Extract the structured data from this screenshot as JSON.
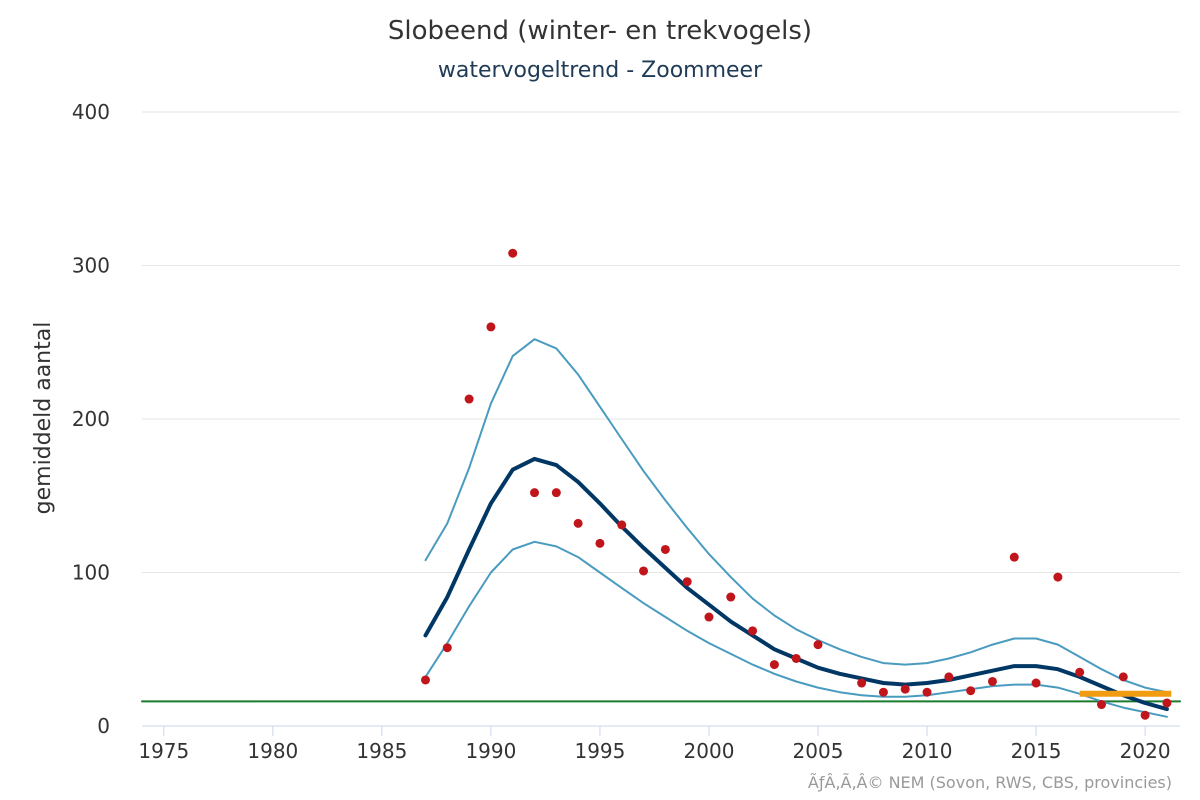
{
  "chart_data": {
    "type": "line",
    "title": "Slobeend (winter- en trekvogels)",
    "subtitle": "watervogeltrend - Zoommeer",
    "xlabel": "",
    "ylabel": "gemiddeld aantal",
    "xlim": [
      1974,
      2021.6
    ],
    "ylim": [
      0,
      400
    ],
    "x_ticks": [
      1975,
      1980,
      1985,
      1990,
      1995,
      2000,
      2005,
      2010,
      2015,
      2020
    ],
    "y_ticks": [
      0,
      100,
      200,
      300,
      400
    ],
    "grid": true,
    "legend": "none",
    "credits": "ÃƒÂ‚Ã‚Â© NEM (Sovon, RWS, CBS, provincies)",
    "series": [
      {
        "kind": "observed",
        "style": "points",
        "color": "#c0161b",
        "x": [
          1987,
          1988,
          1989,
          1990,
          1991,
          1992,
          1993,
          1994,
          1995,
          1996,
          1997,
          1998,
          1999,
          2000,
          2001,
          2002,
          2003,
          2004,
          2005,
          2006,
          2007,
          2008,
          2009,
          2010,
          2011,
          2012,
          2013,
          2014,
          2015,
          2016,
          2017,
          2018,
          2019,
          2020,
          2021
        ],
        "values": [
          30,
          51,
          213,
          260,
          308,
          152,
          152,
          132,
          119,
          131,
          101,
          115,
          94,
          71,
          84,
          62,
          40,
          44,
          53,
          null,
          28,
          22,
          24,
          22,
          32,
          23,
          29,
          110,
          28,
          97,
          35,
          14,
          32,
          7,
          15
        ]
      },
      {
        "kind": "trend",
        "style": "line",
        "color": "#003764",
        "x": [
          1987,
          1988,
          1989,
          1990,
          1991,
          1992,
          1993,
          1994,
          1995,
          1996,
          1997,
          1998,
          1999,
          2000,
          2001,
          2002,
          2003,
          2004,
          2005,
          2006,
          2007,
          2008,
          2009,
          2010,
          2011,
          2012,
          2013,
          2014,
          2015,
          2016,
          2017,
          2018,
          2019,
          2020,
          2021
        ],
        "values": [
          59,
          84,
          115,
          145,
          167,
          174,
          170,
          159,
          145,
          130,
          116,
          103,
          90,
          79,
          68,
          59,
          50,
          44,
          38,
          34,
          31,
          28,
          27,
          28,
          30,
          33,
          36,
          39,
          39,
          37,
          32,
          26,
          20,
          15,
          11
        ]
      },
      {
        "kind": "upper-bound",
        "style": "line",
        "color": "#4a9bc0",
        "x": [
          1987,
          1988,
          1989,
          1990,
          1991,
          1992,
          1993,
          1994,
          1995,
          1996,
          1997,
          1998,
          1999,
          2000,
          2001,
          2002,
          2003,
          2004,
          2005,
          2006,
          2007,
          2008,
          2009,
          2010,
          2011,
          2012,
          2013,
          2014,
          2015,
          2016,
          2017,
          2018,
          2019,
          2020,
          2021
        ],
        "values": [
          108,
          132,
          168,
          210,
          241,
          252,
          246,
          229,
          208,
          187,
          166,
          147,
          129,
          112,
          97,
          83,
          72,
          63,
          56,
          50,
          45,
          41,
          40,
          41,
          44,
          48,
          53,
          57,
          57,
          53,
          45,
          37,
          30,
          25,
          22
        ]
      },
      {
        "kind": "lower-bound",
        "style": "line",
        "color": "#4a9bc0",
        "x": [
          1987,
          1988,
          1989,
          1990,
          1991,
          1992,
          1993,
          1994,
          1995,
          1996,
          1997,
          1998,
          1999,
          2000,
          2001,
          2002,
          2003,
          2004,
          2005,
          2006,
          2007,
          2008,
          2009,
          2010,
          2011,
          2012,
          2013,
          2014,
          2015,
          2016,
          2017,
          2018,
          2019,
          2020,
          2021
        ],
        "values": [
          32,
          54,
          78,
          100,
          115,
          120,
          117,
          110,
          100,
          90,
          80,
          71,
          62,
          54,
          47,
          40,
          34,
          29,
          25,
          22,
          20,
          19,
          19,
          20,
          22,
          24,
          26,
          27,
          27,
          25,
          21,
          16,
          12,
          9,
          6
        ]
      },
      {
        "kind": "reference-level",
        "style": "line",
        "color": "#1a7a2e",
        "x": [
          1974,
          2021.6
        ],
        "values": [
          16,
          16
        ]
      },
      {
        "kind": "recent-level",
        "style": "line",
        "color": "#f29c11",
        "x": [
          2017,
          2021.2
        ],
        "values": [
          21,
          21
        ]
      }
    ]
  }
}
